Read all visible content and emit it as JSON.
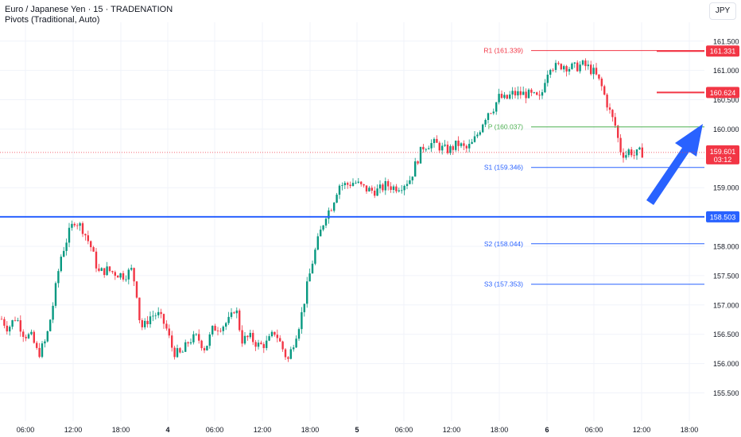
{
  "header": {
    "title": "Euro / Japanese Yen · 15 · TRADENATION",
    "indicator": "Pivots (Traditional, Auto)",
    "currency": "JPY"
  },
  "colors": {
    "up": "#089981",
    "down": "#f23645",
    "pivot_resistance": "#f23645",
    "pivot_point": "#4caf50",
    "pivot_support": "#2962ff",
    "level_line": "#2962ff",
    "resistance_marker": "#f23645",
    "arrow": "#2962ff",
    "grid": "#f0f3fa",
    "axis_text": "#131722"
  },
  "chart_data": {
    "type": "candlestick",
    "symbol": "EURJPY",
    "timeframe": "15",
    "ylim": [
      155.4,
      161.85
    ],
    "y_ticks": [
      "155.500",
      "156.000",
      "156.500",
      "157.000",
      "157.500",
      "158.000",
      "158.500",
      "159.000",
      "159.500",
      "160.000",
      "160.500",
      "161.000",
      "161.500"
    ],
    "x_ticks": [
      "06:00",
      "12:00",
      "18:00",
      "4",
      "06:00",
      "12:00",
      "18:00",
      "5",
      "06:00",
      "12:00",
      "18:00",
      "6",
      "06:00",
      "12:00",
      "18:00"
    ],
    "pivots": [
      {
        "label": "R1 (161.339)",
        "value": 161.339,
        "kind": "resistance"
      },
      {
        "label": "P (160.037)",
        "value": 160.037,
        "kind": "pivot"
      },
      {
        "label": "S1 (159.346)",
        "value": 159.346,
        "kind": "support"
      },
      {
        "label": "S2 (158.044)",
        "value": 158.044,
        "kind": "support"
      },
      {
        "label": "S3 (157.353)",
        "value": 157.353,
        "kind": "support"
      }
    ],
    "levels": [
      {
        "label": "161.331",
        "value": 161.331,
        "kind": "resistance"
      },
      {
        "label": "160.624",
        "value": 160.624,
        "kind": "resistance"
      },
      {
        "label": "158.503",
        "value": 158.503,
        "kind": "support"
      }
    ],
    "last_price": {
      "label": "159.601",
      "value": 159.601,
      "countdown": "03:12"
    },
    "trend_path": [
      [
        0,
        156.8
      ],
      [
        10,
        156.6
      ],
      [
        20,
        156.8
      ],
      [
        30,
        156.5
      ],
      [
        40,
        156.45
      ],
      [
        48,
        156.15
      ],
      [
        58,
        156.4
      ],
      [
        66,
        156.95
      ],
      [
        76,
        157.8
      ],
      [
        86,
        158.2
      ],
      [
        94,
        158.45
      ],
      [
        104,
        158.3
      ],
      [
        114,
        158.0
      ],
      [
        124,
        157.55
      ],
      [
        134,
        157.6
      ],
      [
        144,
        157.55
      ],
      [
        156,
        157.5
      ],
      [
        166,
        157.6
      ],
      [
        172,
        157.2
      ],
      [
        176,
        156.7
      ],
      [
        180,
        156.6
      ],
      [
        188,
        156.8
      ],
      [
        198,
        156.85
      ],
      [
        208,
        156.65
      ],
      [
        218,
        156.2
      ],
      [
        228,
        156.15
      ],
      [
        238,
        156.4
      ],
      [
        248,
        156.45
      ],
      [
        258,
        156.25
      ],
      [
        268,
        156.6
      ],
      [
        280,
        156.65
      ],
      [
        290,
        156.75
      ],
      [
        296,
        157.0
      ],
      [
        304,
        156.4
      ],
      [
        314,
        156.45
      ],
      [
        326,
        156.3
      ],
      [
        336,
        156.35
      ],
      [
        346,
        156.55
      ],
      [
        354,
        156.3
      ],
      [
        362,
        156.05
      ],
      [
        370,
        156.4
      ],
      [
        378,
        156.75
      ],
      [
        386,
        157.3
      ],
      [
        394,
        157.8
      ],
      [
        402,
        158.2
      ],
      [
        410,
        158.55
      ],
      [
        416,
        158.65
      ],
      [
        420,
        158.8
      ],
      [
        426,
        159.05
      ],
      [
        436,
        159.05
      ],
      [
        446,
        159.1
      ],
      [
        456,
        159.0
      ],
      [
        466,
        158.95
      ],
      [
        476,
        158.95
      ],
      [
        486,
        159.05
      ],
      [
        496,
        159.0
      ],
      [
        506,
        159.05
      ],
      [
        516,
        159.15
      ],
      [
        524,
        159.45
      ],
      [
        532,
        159.7
      ],
      [
        540,
        159.75
      ],
      [
        548,
        159.75
      ],
      [
        558,
        159.65
      ],
      [
        566,
        159.65
      ],
      [
        576,
        159.75
      ],
      [
        586,
        159.65
      ],
      [
        594,
        159.75
      ],
      [
        602,
        159.95
      ],
      [
        608,
        160.15
      ],
      [
        614,
        160.3
      ],
      [
        620,
        160.35
      ],
      [
        628,
        160.55
      ],
      [
        636,
        160.5
      ],
      [
        644,
        160.6
      ],
      [
        652,
        160.6
      ],
      [
        662,
        160.6
      ],
      [
        672,
        160.55
      ],
      [
        680,
        160.5
      ],
      [
        686,
        160.9
      ],
      [
        692,
        161.1
      ],
      [
        700,
        161.05
      ],
      [
        708,
        161.1
      ],
      [
        716,
        161.05
      ],
      [
        724,
        161.05
      ],
      [
        732,
        161.1
      ],
      [
        740,
        161.05
      ],
      [
        748,
        160.95
      ],
      [
        756,
        160.75
      ],
      [
        762,
        160.5
      ],
      [
        768,
        160.25
      ],
      [
        774,
        160.05
      ],
      [
        780,
        159.65
      ],
      [
        786,
        159.55
      ],
      [
        792,
        159.65
      ],
      [
        798,
        159.55
      ],
      [
        804,
        159.6
      ],
      [
        808,
        159.6
      ]
    ],
    "candle_start_x": 2,
    "candle_step_px": 3.4
  },
  "annotation": {
    "type": "arrow",
    "direction": "up-right"
  }
}
